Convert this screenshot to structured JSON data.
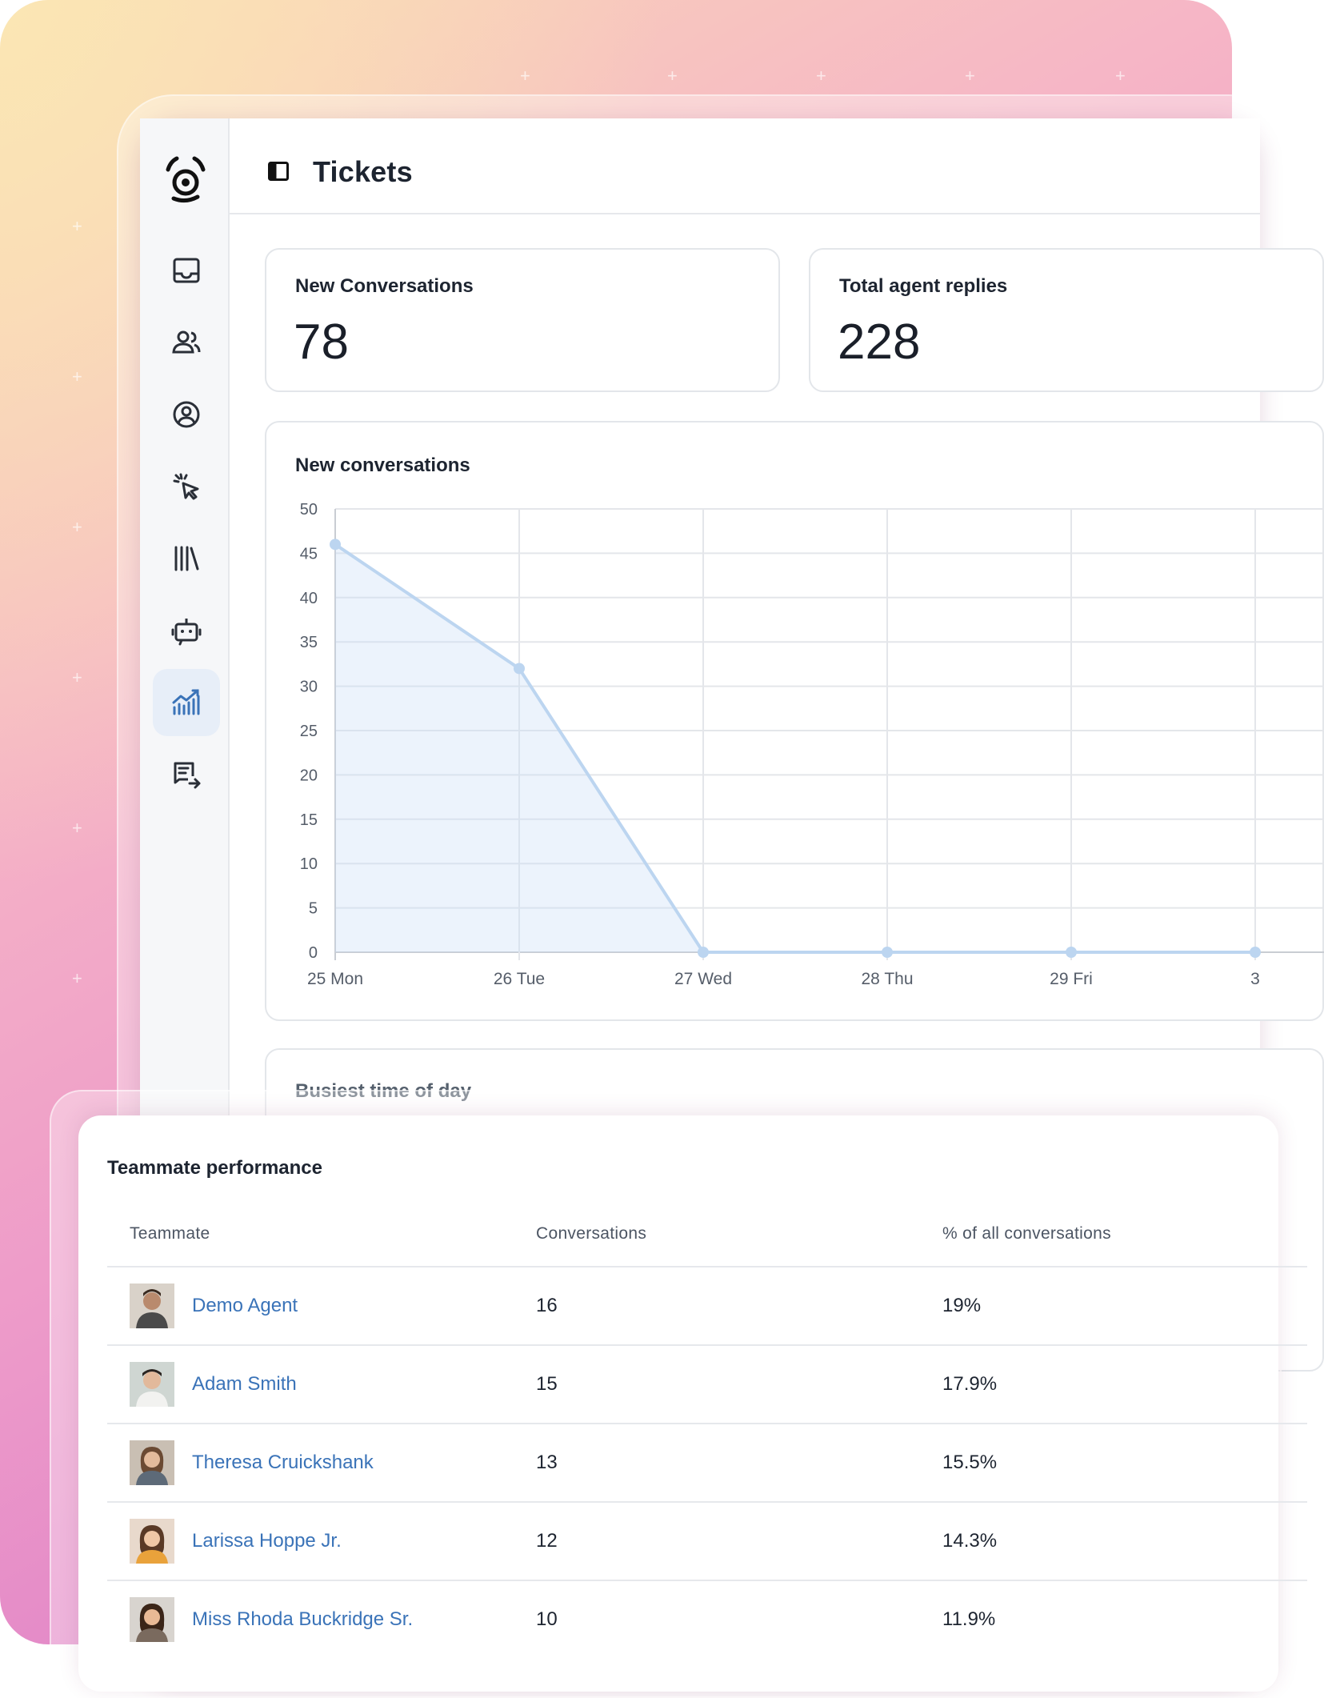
{
  "header": {
    "title": "Tickets"
  },
  "sidebar": {
    "items": [
      {
        "name": "inbox-icon"
      },
      {
        "name": "contacts-icon"
      },
      {
        "name": "user-circle-icon"
      },
      {
        "name": "cursor-click-icon"
      },
      {
        "name": "library-icon"
      },
      {
        "name": "bot-icon"
      },
      {
        "name": "analytics-icon",
        "active": true
      },
      {
        "name": "reports-icon"
      }
    ]
  },
  "metrics": [
    {
      "label": "New Conversations",
      "value": "78"
    },
    {
      "label": "Total agent replies",
      "value": "228"
    }
  ],
  "chart": {
    "title": "New conversations",
    "busiest_title": "Busiest time of day"
  },
  "chart_data": {
    "type": "area",
    "title": "New conversations",
    "categories": [
      "25 Mon",
      "26 Tue",
      "27 Wed",
      "28 Thu",
      "29 Fri",
      "3"
    ],
    "values": [
      46,
      32,
      0,
      0,
      0,
      0
    ],
    "ylim": [
      0,
      50
    ],
    "yticks": [
      0,
      5,
      10,
      15,
      20,
      25,
      30,
      35,
      40,
      45,
      50
    ],
    "grid": true,
    "color": "#bcd5f0"
  },
  "teammates": {
    "title": "Teammate performance",
    "columns": [
      "Teammate",
      "Conversations",
      "% of all conversations"
    ],
    "rows": [
      {
        "name": "Demo Agent",
        "conversations": "16",
        "percent": "19%"
      },
      {
        "name": "Adam Smith",
        "conversations": "15",
        "percent": "17.9%"
      },
      {
        "name": "Theresa Cruickshank",
        "conversations": "13",
        "percent": "15.5%"
      },
      {
        "name": "Larissa Hoppe Jr.",
        "conversations": "12",
        "percent": "14.3%"
      },
      {
        "name": "Miss Rhoda Buckridge Sr.",
        "conversations": "10",
        "percent": "11.9%"
      }
    ]
  },
  "colors": {
    "accent": "#3a73b8",
    "active_bg": "#e7eef8",
    "chart_line": "#bcd5f0"
  }
}
